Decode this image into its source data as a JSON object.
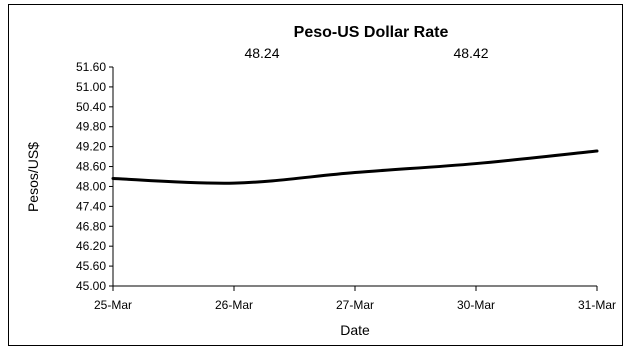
{
  "chart_data": {
    "type": "line",
    "title": "Peso-US Dollar Rate",
    "xlabel": "Date",
    "ylabel": "Pesos/US$",
    "categories": [
      "25-Mar",
      "26-Mar",
      "27-Mar",
      "30-Mar",
      "31-Mar"
    ],
    "series": [
      {
        "values": [
          48.24,
          48.1,
          48.42,
          48.69,
          49.07
        ]
      }
    ],
    "ylim": [
      45.0,
      51.6
    ],
    "yticks": [
      "45.00",
      "45.60",
      "46.20",
      "46.80",
      "47.40",
      "48.00",
      "48.60",
      "49.20",
      "49.80",
      "50.40",
      "51.00",
      "51.60"
    ],
    "annotations": [
      "48.24",
      "48.42"
    ],
    "line_color": "#000000",
    "grid": false,
    "legend": "none"
  }
}
